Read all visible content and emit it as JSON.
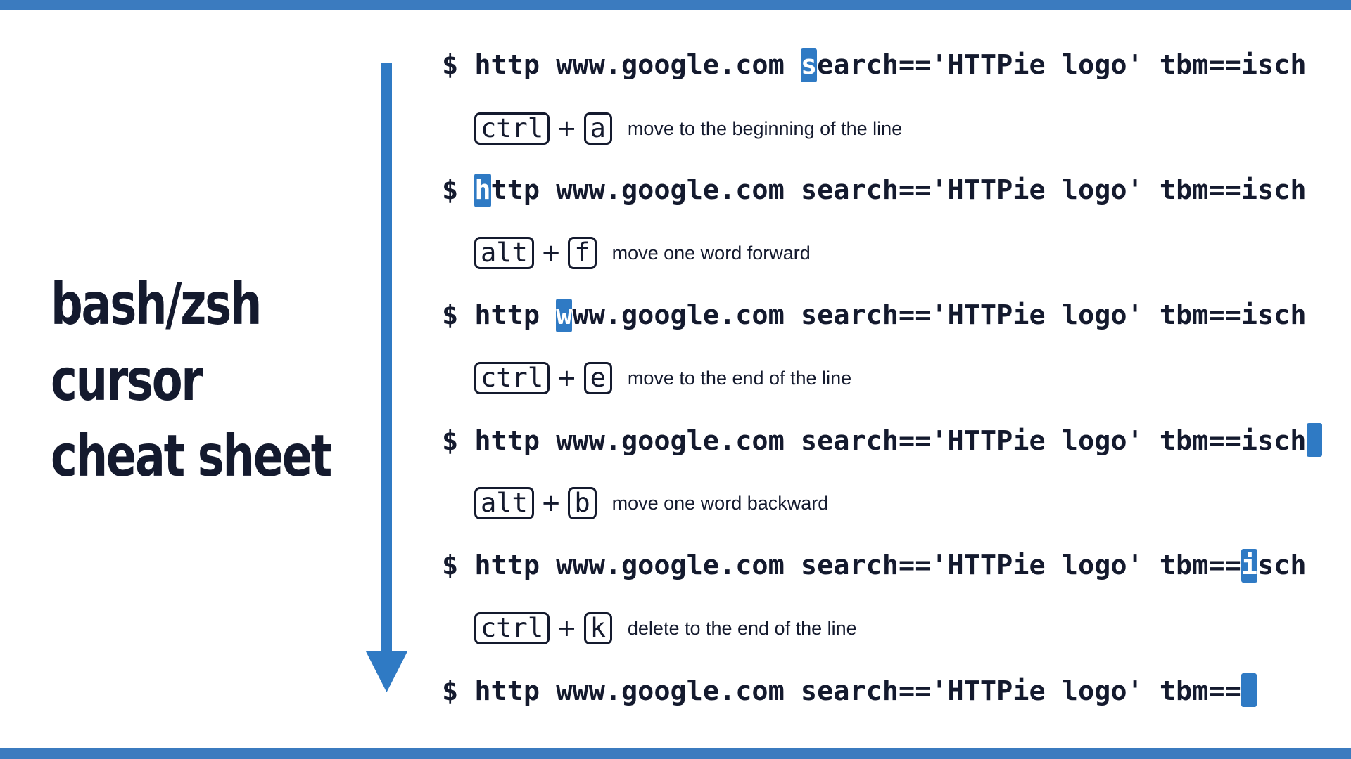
{
  "colors": {
    "accent": "#2f7ac4",
    "bars": "#3b7bbf",
    "text": "#141a2e",
    "background": "#ffffff"
  },
  "title": {
    "line1": "bash/zsh",
    "line2": "cursor",
    "line3": "cheat sheet"
  },
  "commands": [
    {
      "before": "$ http www.google.com ",
      "cursor": "s",
      "after": "earch=='HTTPie logo' tbm==isch"
    },
    {
      "before": "$ ",
      "cursor": "h",
      "after": "ttp www.google.com search=='HTTPie logo' tbm==isch"
    },
    {
      "before": "$ http ",
      "cursor": "w",
      "after": "ww.google.com search=='HTTPie logo' tbm==isch"
    },
    {
      "before": "$ http www.google.com search=='HTTPie logo' tbm==isch",
      "cursor": "",
      "after": ""
    },
    {
      "before": "$ http www.google.com search=='HTTPie logo' tbm==",
      "cursor": "i",
      "after": "sch"
    },
    {
      "before": "$ http www.google.com search=='HTTPie logo' tbm==",
      "cursor": "",
      "after": ""
    }
  ],
  "shortcuts": [
    {
      "modifier": "ctrl",
      "plus": "+",
      "key": "a",
      "description": "move to the beginning of the line"
    },
    {
      "modifier": "alt",
      "plus": "+",
      "key": "f",
      "description": "move one word forward"
    },
    {
      "modifier": "ctrl",
      "plus": "+",
      "key": "e",
      "description": "move to the end of the line"
    },
    {
      "modifier": "alt",
      "plus": "+",
      "key": "b",
      "description": "move one word backward"
    },
    {
      "modifier": "ctrl",
      "plus": "+",
      "key": "k",
      "description": "delete to the end of the line"
    }
  ]
}
